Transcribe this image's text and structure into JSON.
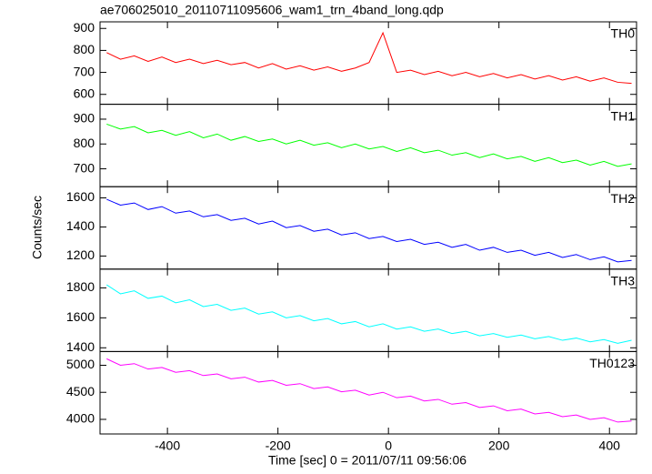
{
  "chart_data": [
    {
      "type": "line",
      "title": "ae706025010_20110711095606_wam1_trn_4band_long.qdp",
      "x": [
        -510,
        -485,
        -460,
        -435,
        -410,
        -385,
        -360,
        -335,
        -310,
        -285,
        -260,
        -235,
        -210,
        -185,
        -160,
        -135,
        -110,
        -85,
        -60,
        -35,
        -10,
        15,
        40,
        65,
        90,
        115,
        140,
        165,
        190,
        215,
        240,
        265,
        290,
        315,
        340,
        365,
        390,
        415,
        440
      ],
      "series": [
        {
          "name": "TH0",
          "color": "#ff0000",
          "values": [
            790,
            760,
            775,
            750,
            770,
            745,
            760,
            740,
            755,
            735,
            745,
            720,
            740,
            715,
            730,
            710,
            725,
            705,
            720,
            745,
            880,
            700,
            710,
            690,
            705,
            685,
            700,
            680,
            695,
            675,
            690,
            670,
            685,
            665,
            680,
            660,
            675,
            655,
            650
          ]
        }
      ],
      "xlim": [
        -522,
        449
      ],
      "xticks": [
        -400,
        -200,
        0,
        200,
        400
      ],
      "ylim": [
        555,
        930
      ],
      "yticks": [
        600,
        700,
        800,
        900
      ]
    },
    {
      "type": "line",
      "x": [
        -510,
        -485,
        -460,
        -435,
        -410,
        -385,
        -360,
        -335,
        -310,
        -285,
        -260,
        -235,
        -210,
        -185,
        -160,
        -135,
        -110,
        -85,
        -60,
        -35,
        -10,
        15,
        40,
        65,
        90,
        115,
        140,
        165,
        190,
        215,
        240,
        265,
        290,
        315,
        340,
        365,
        390,
        415,
        440
      ],
      "series": [
        {
          "name": "TH1",
          "color": "#00ff00",
          "values": [
            880,
            860,
            870,
            845,
            855,
            835,
            850,
            825,
            840,
            815,
            830,
            810,
            820,
            800,
            815,
            795,
            805,
            785,
            800,
            780,
            790,
            770,
            785,
            765,
            775,
            755,
            765,
            745,
            760,
            740,
            750,
            730,
            745,
            725,
            735,
            715,
            730,
            710,
            720
          ]
        }
      ],
      "xlim": [
        -522,
        449
      ],
      "xticks": [
        -400,
        -200,
        0,
        200,
        400
      ],
      "ylim": [
        628,
        960
      ],
      "yticks": [
        700,
        800,
        900
      ]
    },
    {
      "type": "line",
      "ylabel": "Counts/sec",
      "x": [
        -510,
        -485,
        -460,
        -435,
        -410,
        -385,
        -360,
        -335,
        -310,
        -285,
        -260,
        -235,
        -210,
        -185,
        -160,
        -135,
        -110,
        -85,
        -60,
        -35,
        -10,
        15,
        40,
        65,
        90,
        115,
        140,
        165,
        190,
        215,
        240,
        265,
        290,
        315,
        340,
        365,
        390,
        415,
        440
      ],
      "series": [
        {
          "name": "TH2",
          "color": "#0000ff",
          "values": [
            1590,
            1550,
            1565,
            1520,
            1540,
            1495,
            1510,
            1470,
            1485,
            1445,
            1460,
            1420,
            1440,
            1395,
            1410,
            1370,
            1385,
            1345,
            1360,
            1320,
            1335,
            1300,
            1315,
            1280,
            1295,
            1260,
            1280,
            1240,
            1260,
            1225,
            1240,
            1205,
            1225,
            1190,
            1210,
            1175,
            1195,
            1160,
            1170
          ]
        }
      ],
      "xlim": [
        -522,
        449
      ],
      "xticks": [
        -400,
        -200,
        0,
        200,
        400
      ],
      "ylim": [
        1110,
        1677
      ],
      "yticks": [
        1200,
        1400,
        1600
      ]
    },
    {
      "type": "line",
      "x": [
        -510,
        -485,
        -460,
        -435,
        -410,
        -385,
        -360,
        -335,
        -310,
        -285,
        -260,
        -235,
        -210,
        -185,
        -160,
        -135,
        -110,
        -85,
        -60,
        -35,
        -10,
        15,
        40,
        65,
        90,
        115,
        140,
        165,
        190,
        215,
        240,
        265,
        290,
        315,
        340,
        365,
        390,
        415,
        440
      ],
      "series": [
        {
          "name": "TH3",
          "color": "#00ffff",
          "values": [
            1820,
            1760,
            1780,
            1730,
            1745,
            1700,
            1720,
            1675,
            1690,
            1650,
            1665,
            1625,
            1640,
            1600,
            1615,
            1580,
            1595,
            1560,
            1575,
            1540,
            1560,
            1525,
            1540,
            1510,
            1525,
            1495,
            1510,
            1480,
            1495,
            1470,
            1485,
            1460,
            1475,
            1450,
            1465,
            1440,
            1455,
            1430,
            1450
          ]
        }
      ],
      "xlim": [
        -522,
        449
      ],
      "xticks": [
        -400,
        -200,
        0,
        200,
        400
      ],
      "ylim": [
        1375,
        1925
      ],
      "yticks": [
        1400,
        1600,
        1800
      ]
    },
    {
      "type": "line",
      "xlabel": "Time [sec] 0 = 2011/07/11 09:56:06",
      "x": [
        -510,
        -485,
        -460,
        -435,
        -410,
        -385,
        -360,
        -335,
        -310,
        -285,
        -260,
        -235,
        -210,
        -185,
        -160,
        -135,
        -110,
        -85,
        -60,
        -35,
        -10,
        15,
        40,
        65,
        90,
        115,
        140,
        165,
        190,
        215,
        240,
        265,
        290,
        315,
        340,
        365,
        390,
        415,
        440
      ],
      "series": [
        {
          "name": "TH0123",
          "color": "#ff00ff",
          "values": [
            5120,
            5000,
            5030,
            4930,
            4960,
            4870,
            4900,
            4810,
            4840,
            4750,
            4780,
            4690,
            4720,
            4630,
            4660,
            4570,
            4600,
            4510,
            4540,
            4450,
            4500,
            4400,
            4430,
            4340,
            4370,
            4280,
            4310,
            4220,
            4250,
            4160,
            4190,
            4100,
            4130,
            4050,
            4080,
            4000,
            4030,
            3950,
            3970
          ]
        }
      ],
      "xlim": [
        -522,
        449
      ],
      "xticks": [
        -400,
        -200,
        0,
        200,
        400
      ],
      "ylim": [
        3730,
        5254
      ],
      "yticks": [
        4000,
        4500,
        5000
      ]
    }
  ]
}
